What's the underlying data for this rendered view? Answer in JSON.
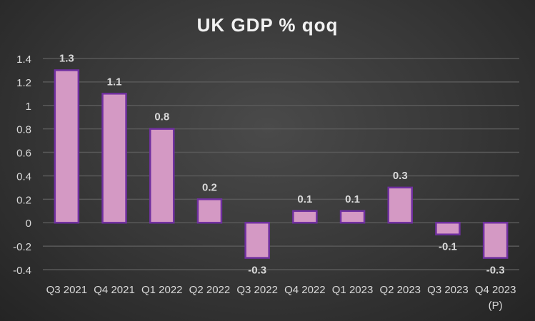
{
  "chart_data": {
    "type": "bar",
    "title": "UK GDP % qoq",
    "xlabel": "",
    "ylabel": "",
    "categories": [
      "Q3 2021",
      "Q4 2021",
      "Q1 2022",
      "Q2 2022",
      "Q3 2022",
      "Q4 2022",
      "Q1 2023",
      "Q2 2023",
      "Q3 2023",
      "Q4 2023\n(P)"
    ],
    "values": [
      1.3,
      1.1,
      0.8,
      0.2,
      -0.3,
      0.1,
      0.1,
      0.3,
      -0.1,
      -0.3
    ],
    "data_labels": [
      "1.3",
      "1.1",
      "0.8",
      "0.2",
      "-0.3",
      "0.1",
      "0.1",
      "0.3",
      "-0.1",
      "-0.3"
    ],
    "ylim": [
      -0.4,
      1.4
    ],
    "yticks": [
      -0.4,
      -0.2,
      0,
      0.2,
      0.4,
      0.6,
      0.8,
      1,
      1.2,
      1.4
    ],
    "ytick_labels": [
      "-0.4",
      "-0.2",
      "0",
      "0.2",
      "0.4",
      "0.6",
      "0.8",
      "1",
      "1.2",
      "1.4"
    ],
    "grid": true,
    "legend": "none",
    "colors": {
      "bar_fill": "#d499c4",
      "bar_stroke": "#7030a0",
      "text": "#d9d9d9",
      "grid": "#595959"
    }
  }
}
